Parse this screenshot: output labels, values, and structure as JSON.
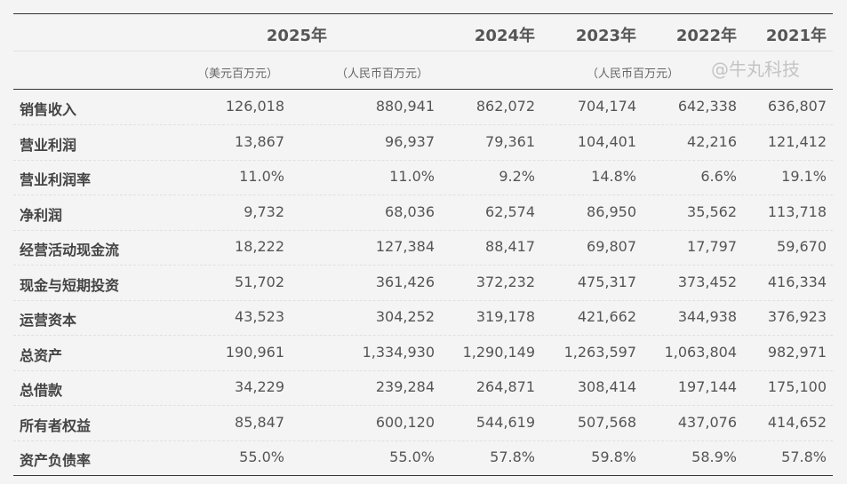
{
  "header": {
    "years": [
      "2025年",
      "2024年",
      "2023年",
      "2022年",
      "2021年"
    ],
    "units": {
      "usd": "（美元百万元）",
      "rmb_2025": "（人民币百万元）",
      "rmb_hist": "（人民币百万元）"
    }
  },
  "rows": [
    {
      "label": "销售收入",
      "values": [
        "126,018",
        "880,941",
        "862,072",
        "704,174",
        "642,338",
        "636,807"
      ]
    },
    {
      "label": "营业利润",
      "values": [
        "13,867",
        "96,937",
        "79,361",
        "104,401",
        "42,216",
        "121,412"
      ]
    },
    {
      "label": "营业利润率",
      "values": [
        "11.0%",
        "11.0%",
        "9.2%",
        "14.8%",
        "6.6%",
        "19.1%"
      ]
    },
    {
      "label": "净利润",
      "values": [
        "9,732",
        "68,036",
        "62,574",
        "86,950",
        "35,562",
        "113,718"
      ]
    },
    {
      "label": "经营活动现金流",
      "values": [
        "18,222",
        "127,384",
        "88,417",
        "69,807",
        "17,797",
        "59,670"
      ]
    },
    {
      "label": "现金与短期投资",
      "values": [
        "51,702",
        "361,426",
        "372,232",
        "475,317",
        "373,452",
        "416,334"
      ]
    },
    {
      "label": "运营资本",
      "values": [
        "43,523",
        "304,252",
        "319,178",
        "421,662",
        "344,938",
        "376,923"
      ]
    },
    {
      "label": "总资产",
      "values": [
        "190,961",
        "1,334,930",
        "1,290,149",
        "1,263,597",
        "1,063,804",
        "982,971"
      ]
    },
    {
      "label": "总借款",
      "values": [
        "34,229",
        "239,284",
        "264,871",
        "308,414",
        "197,144",
        "175,100"
      ]
    },
    {
      "label": "所有者权益",
      "values": [
        "85,847",
        "600,120",
        "544,619",
        "507,568",
        "437,076",
        "414,652"
      ]
    },
    {
      "label": "资产负债率",
      "values": [
        "55.0%",
        "55.0%",
        "57.8%",
        "59.8%",
        "58.9%",
        "57.8%"
      ]
    }
  ],
  "watermark": "@牛丸科技"
}
